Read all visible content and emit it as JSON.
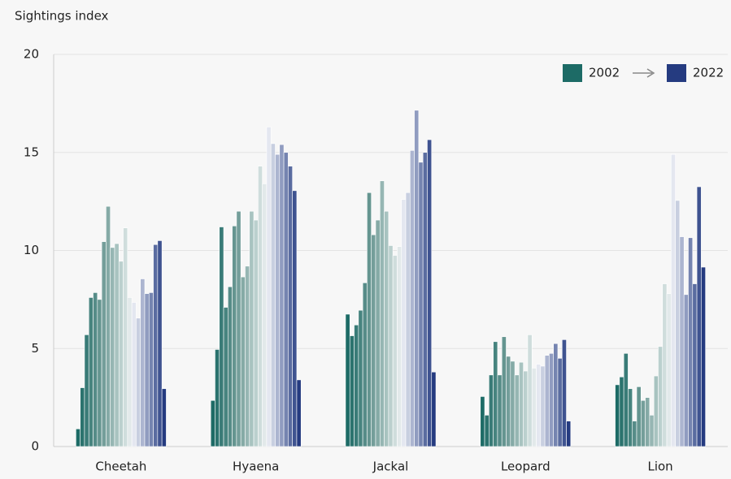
{
  "chart_data": {
    "type": "bar",
    "y_label": "Sightings index",
    "categories": [
      "Cheetah",
      "Hyaena",
      "Jackal",
      "Leopard",
      "Lion"
    ],
    "legend": {
      "start": "2002",
      "end": "2022"
    },
    "ylim": [
      0,
      20
    ],
    "yticks": [
      0,
      5,
      10,
      15,
      20
    ],
    "grid": true,
    "series": [
      {
        "color": "#1d6b66",
        "values": [
          0.9,
          2.35,
          6.75,
          2.55,
          3.15
        ]
      },
      {
        "color": "#2b736e",
        "values": [
          3.0,
          4.95,
          5.65,
          1.6,
          3.55
        ]
      },
      {
        "color": "#397b77",
        "values": [
          5.7,
          11.2,
          6.2,
          3.65,
          4.75
        ]
      },
      {
        "color": "#47847f",
        "values": [
          7.6,
          7.1,
          6.95,
          5.35,
          2.95
        ]
      },
      {
        "color": "#568c88",
        "values": [
          7.85,
          8.15,
          8.35,
          3.65,
          1.3
        ]
      },
      {
        "color": "#659590",
        "values": [
          7.5,
          11.25,
          12.95,
          5.6,
          3.05
        ]
      },
      {
        "color": "#749e9a",
        "values": [
          10.45,
          12.0,
          10.8,
          4.6,
          2.35
        ]
      },
      {
        "color": "#85aaa6",
        "values": [
          12.25,
          8.65,
          11.55,
          4.35,
          2.5
        ]
      },
      {
        "color": "#96b6b3",
        "values": [
          10.15,
          9.2,
          13.55,
          3.65,
          1.6
        ]
      },
      {
        "color": "#a8c3c0",
        "values": [
          10.35,
          12.0,
          12.0,
          4.3,
          3.6
        ]
      },
      {
        "color": "#bbd0ce",
        "values": [
          9.45,
          11.55,
          10.25,
          3.85,
          5.1
        ]
      },
      {
        "color": "#cfdddc",
        "values": [
          11.15,
          14.3,
          9.75,
          5.7,
          8.3
        ]
      },
      {
        "color": "#e2e9ea",
        "values": [
          7.6,
          13.4,
          10.2,
          4.0,
          7.8
        ]
      },
      {
        "color": "#e4e7f0",
        "values": [
          7.35,
          16.3,
          12.6,
          4.2,
          14.9
        ]
      },
      {
        "color": "#c8cfe0",
        "values": [
          6.55,
          15.45,
          12.95,
          4.1,
          12.55
        ]
      },
      {
        "color": "#acb5d0",
        "values": [
          8.55,
          14.9,
          15.1,
          4.65,
          10.7
        ]
      },
      {
        "color": "#909cc0",
        "values": [
          7.8,
          15.4,
          17.15,
          4.75,
          7.75
        ]
      },
      {
        "color": "#7584b0",
        "values": [
          7.85,
          15.0,
          14.5,
          5.25,
          10.65
        ]
      },
      {
        "color": "#5a6ca0",
        "values": [
          10.3,
          14.3,
          15.0,
          4.5,
          8.3
        ]
      },
      {
        "color": "#3f5390",
        "values": [
          10.5,
          13.05,
          15.65,
          5.45,
          13.25
        ]
      },
      {
        "color": "#253b80",
        "values": [
          2.95,
          3.4,
          3.8,
          1.3,
          9.15
        ]
      }
    ]
  }
}
